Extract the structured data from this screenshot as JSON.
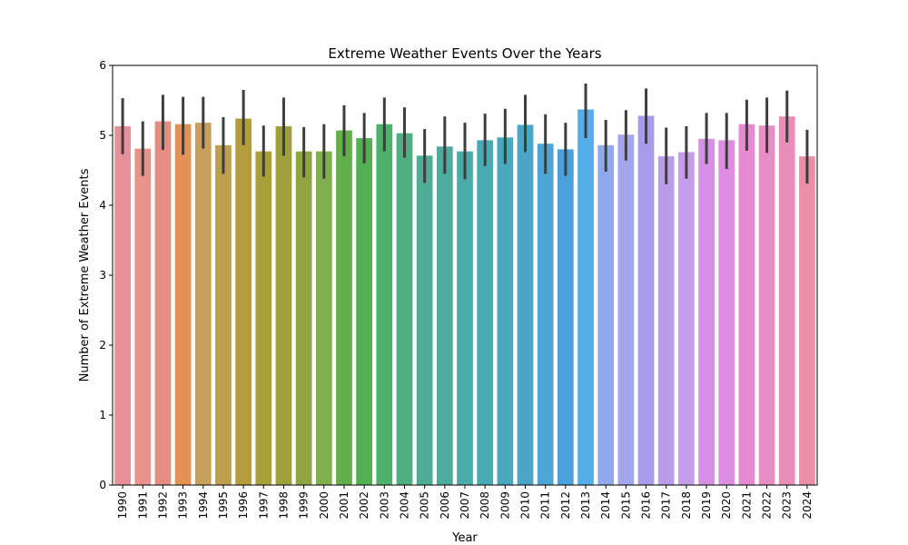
{
  "chart_data": {
    "type": "bar",
    "title": "Extreme Weather Events Over the Years",
    "xlabel": "Year",
    "ylabel": "Number of Extreme Weather Events",
    "ylim": [
      0,
      6
    ],
    "yticks": [
      "0",
      "1",
      "2",
      "3",
      "4",
      "5",
      "6"
    ],
    "grid": false,
    "categories": [
      "1990",
      "1991",
      "1992",
      "1993",
      "1994",
      "1995",
      "1996",
      "1997",
      "1998",
      "1999",
      "2000",
      "2001",
      "2002",
      "2003",
      "2004",
      "2005",
      "2006",
      "2007",
      "2008",
      "2009",
      "2010",
      "2011",
      "2012",
      "2013",
      "2014",
      "2015",
      "2016",
      "2017",
      "2018",
      "2019",
      "2020",
      "2021",
      "2022",
      "2023",
      "2024"
    ],
    "values": [
      5.13,
      4.81,
      5.2,
      5.16,
      5.18,
      4.86,
      5.24,
      4.77,
      5.13,
      4.77,
      4.77,
      5.07,
      4.96,
      5.16,
      5.03,
      4.71,
      4.84,
      4.77,
      4.93,
      4.97,
      5.15,
      4.88,
      4.8,
      5.37,
      4.86,
      5.01,
      5.28,
      4.7,
      4.76,
      4.95,
      4.93,
      5.16,
      5.14,
      5.27,
      4.7
    ],
    "error_low": [
      4.73,
      4.42,
      4.79,
      4.72,
      4.81,
      4.45,
      4.86,
      4.41,
      4.71,
      4.4,
      4.38,
      4.7,
      4.6,
      4.77,
      4.68,
      4.32,
      4.45,
      4.37,
      4.56,
      4.59,
      4.76,
      4.45,
      4.42,
      4.96,
      4.48,
      4.64,
      4.88,
      4.3,
      4.38,
      4.59,
      4.52,
      4.78,
      4.75,
      4.9,
      4.31
    ],
    "error_high": [
      5.53,
      5.2,
      5.58,
      5.55,
      5.55,
      5.26,
      5.65,
      5.14,
      5.54,
      5.12,
      5.16,
      5.43,
      5.32,
      5.54,
      5.4,
      5.09,
      5.27,
      5.18,
      5.31,
      5.38,
      5.58,
      5.3,
      5.18,
      5.74,
      5.22,
      5.36,
      5.67,
      5.11,
      5.13,
      5.32,
      5.32,
      5.51,
      5.54,
      5.64,
      5.08
    ],
    "colors": [
      "#E8909A",
      "#E8948C",
      "#E58D82",
      "#E49254",
      "#C9A05B",
      "#BCA04E",
      "#B49D3D",
      "#A9A03C",
      "#9DA03C",
      "#90A541",
      "#7FB04D",
      "#62AE48",
      "#52AF52",
      "#4EB06A",
      "#4FAE80",
      "#4DAE95",
      "#4CAD9F",
      "#4AACA8",
      "#4AAAB3",
      "#4BA8BC",
      "#4AA5C7",
      "#4DA5D5",
      "#4BA2DA",
      "#55AEEA",
      "#8FA9EA",
      "#A2A6EC",
      "#A89CEA",
      "#BA9DE8",
      "#C69DE8",
      "#D890E6",
      "#DE8EE0",
      "#E48BD2",
      "#E58FC6",
      "#E98EB9",
      "#EB8FA6"
    ],
    "error_color": "#3E3E3E"
  }
}
